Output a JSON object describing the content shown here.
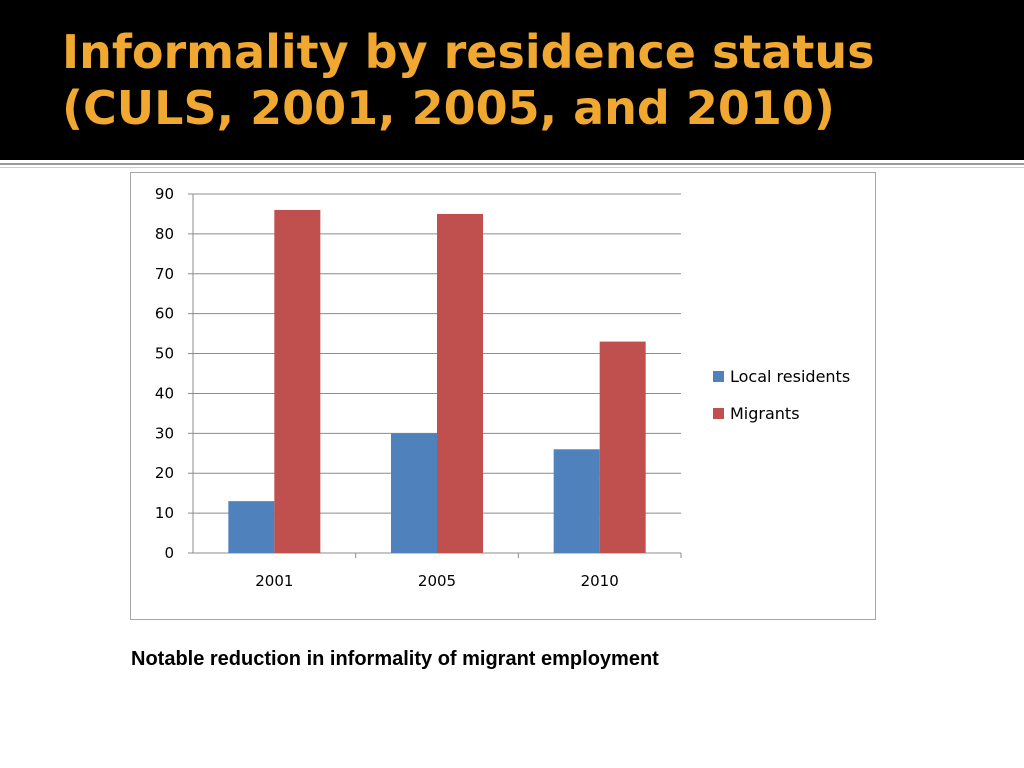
{
  "slide": {
    "title_line1": "Informality by residence status",
    "title_line2": "(CULS, 2001, 2005, and 2010)",
    "caption": "Notable reduction in informality of migrant employment"
  },
  "chart_data": {
    "type": "bar",
    "categories": [
      "2001",
      "2005",
      "2010"
    ],
    "series": [
      {
        "name": "Local residents",
        "values": [
          13,
          30,
          26
        ],
        "color": "#4f81bd"
      },
      {
        "name": "Migrants",
        "values": [
          86,
          85,
          53
        ],
        "color": "#c0504d"
      }
    ],
    "ylim": [
      0,
      90
    ],
    "yticks": [
      0,
      10,
      20,
      30,
      40,
      50,
      60,
      70,
      80,
      90
    ],
    "grid": true,
    "legend": "right"
  }
}
